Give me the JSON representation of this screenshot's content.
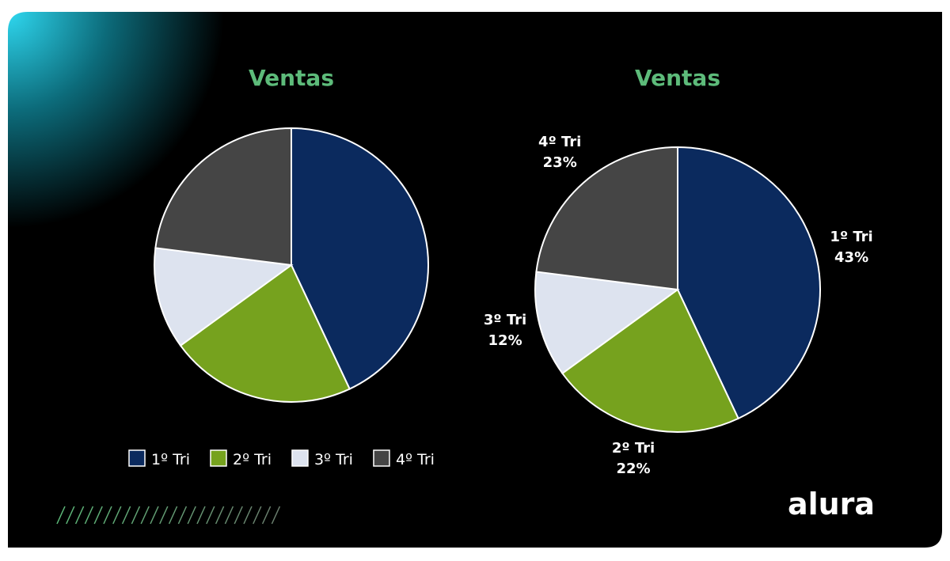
{
  "chart_data": [
    {
      "type": "pie",
      "title": "Ventas",
      "categories": [
        "1º Tri",
        "2º Tri",
        "3º Tri",
        "4º Tri"
      ],
      "values": [
        43,
        22,
        12,
        23
      ],
      "colors": [
        "#0b2a5e",
        "#76a21e",
        "#dde3ef",
        "#454545"
      ],
      "legend": "bottom",
      "data_labels": false
    },
    {
      "type": "pie",
      "title": "Ventas",
      "categories": [
        "1º Tri",
        "2º Tri",
        "3º Tri",
        "4º Tri"
      ],
      "values": [
        43,
        22,
        12,
        23
      ],
      "value_labels": [
        "43%",
        "22%",
        "12%",
        "23%"
      ],
      "colors": [
        "#0b2a5e",
        "#76a21e",
        "#dde3ef",
        "#454545"
      ],
      "legend": false,
      "data_labels": true
    }
  ],
  "brand": "alura"
}
